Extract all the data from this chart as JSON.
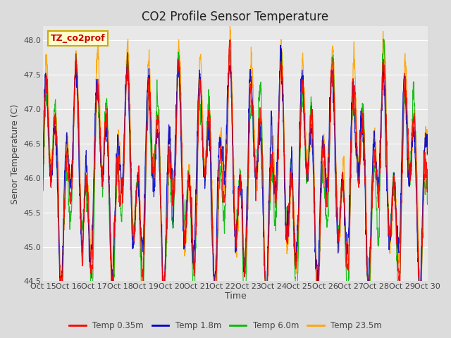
{
  "title": "CO2 Profile Sensor Temperature",
  "ylabel": "Senor Temperature (C)",
  "xlabel": "Time",
  "xlim": [
    0,
    15
  ],
  "ylim": [
    44.5,
    48.2
  ],
  "yticks": [
    44.5,
    45.0,
    45.5,
    46.0,
    46.5,
    47.0,
    47.5,
    48.0
  ],
  "xtick_labels": [
    "Oct 15",
    "Oct 16",
    "Oct 17",
    "Oct 18",
    "Oct 19",
    "Oct 20",
    "Oct 21",
    "Oct 22",
    "Oct 23",
    "Oct 24",
    "Oct 25",
    "Oct 26",
    "Oct 27",
    "Oct 28",
    "Oct 29",
    "Oct 30"
  ],
  "legend_label": "TZ_co2prof",
  "series_colors": [
    "#FF0000",
    "#0000CC",
    "#00BB00",
    "#FFA500"
  ],
  "series_labels": [
    "Temp 0.35m",
    "Temp 1.8m",
    "Temp 6.0m",
    "Temp 23.5m"
  ],
  "background_color": "#E8E8E8",
  "fig_background": "#DCDCDC",
  "title_fontsize": 12,
  "axis_fontsize": 9,
  "tick_fontsize": 8,
  "legend_box_color": "#FFFFCC",
  "legend_box_edge": "#CCAA00",
  "seed": 12345,
  "n_points": 2000,
  "base_temp": 46.0,
  "daily_amplitude": 0.9,
  "spike_amplitude": 0.8,
  "noise_std": 0.25
}
